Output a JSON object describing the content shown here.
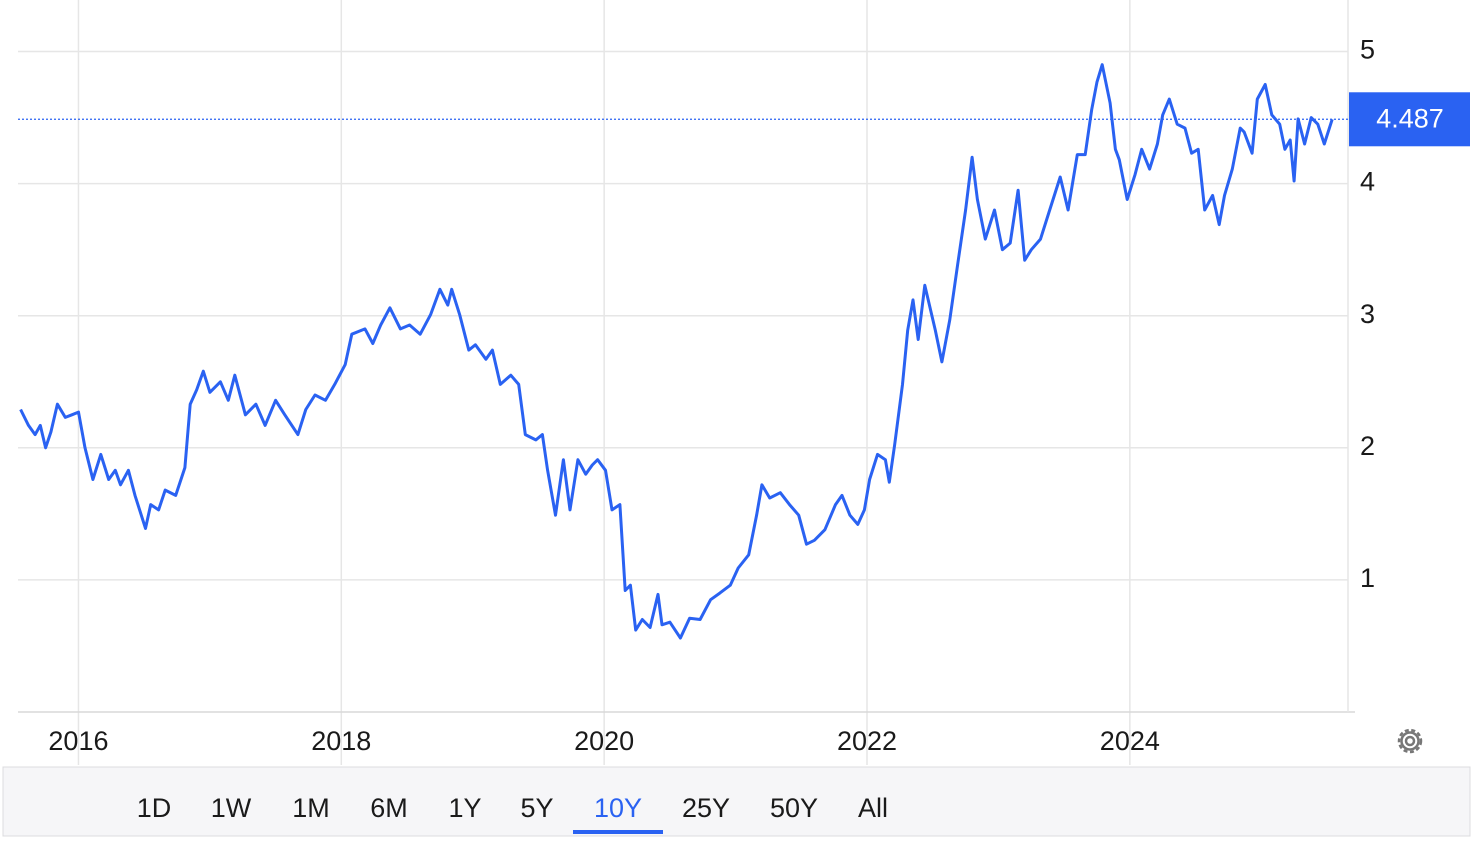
{
  "chart_data": {
    "type": "line",
    "color": "#2a62f2",
    "x": [
      2015.56,
      2015.62,
      2015.67,
      2015.71,
      2015.75,
      2015.79,
      2015.84,
      2015.9,
      2015.95,
      2016.0,
      2016.05,
      2016.11,
      2016.17,
      2016.23,
      2016.28,
      2016.32,
      2016.38,
      2016.43,
      2016.51,
      2016.55,
      2016.61,
      2016.66,
      2016.74,
      2016.81,
      2016.85,
      2016.9,
      2016.95,
      2017.0,
      2017.08,
      2017.14,
      2017.19,
      2017.27,
      2017.35,
      2017.42,
      2017.5,
      2017.57,
      2017.67,
      2017.73,
      2017.8,
      2017.88,
      2017.95,
      2018.03,
      2018.08,
      2018.18,
      2018.24,
      2018.3,
      2018.37,
      2018.45,
      2018.52,
      2018.6,
      2018.68,
      2018.75,
      2018.81,
      2018.84,
      2018.9,
      2018.97,
      2019.02,
      2019.1,
      2019.15,
      2019.21,
      2019.29,
      2019.35,
      2019.4,
      2019.48,
      2019.53,
      2019.57,
      2019.63,
      2019.69,
      2019.74,
      2019.8,
      2019.86,
      2019.91,
      2019.95,
      2020.01,
      2020.06,
      2020.12,
      2020.16,
      2020.2,
      2020.24,
      2020.29,
      2020.35,
      2020.41,
      2020.44,
      2020.5,
      2020.58,
      2020.65,
      2020.73,
      2020.81,
      2020.88,
      2020.96,
      2021.02,
      2021.1,
      2021.16,
      2021.2,
      2021.26,
      2021.34,
      2021.41,
      2021.48,
      2021.54,
      2021.6,
      2021.68,
      2021.76,
      2021.81,
      2021.87,
      2021.93,
      2021.98,
      2022.02,
      2022.08,
      2022.14,
      2022.17,
      2022.21,
      2022.27,
      2022.31,
      2022.35,
      2022.39,
      2022.44,
      2022.52,
      2022.57,
      2022.63,
      2022.69,
      2022.75,
      2022.8,
      2022.84,
      2022.9,
      2022.97,
      2023.03,
      2023.09,
      2023.15,
      2023.2,
      2023.25,
      2023.32,
      2023.39,
      2023.47,
      2023.53,
      2023.6,
      2023.66,
      2023.71,
      2023.75,
      2023.79,
      2023.85,
      2023.89,
      2023.92,
      2023.98,
      2024.04,
      2024.09,
      2024.15,
      2024.21,
      2024.25,
      2024.3,
      2024.36,
      2024.42,
      2024.47,
      2024.52,
      2024.57,
      2024.63,
      2024.68,
      2024.72,
      2024.78,
      2024.84,
      2024.87,
      2024.93,
      2024.97,
      2025.03,
      2025.08,
      2025.14,
      2025.18,
      2025.22,
      2025.25,
      2025.28,
      2025.33,
      2025.38,
      2025.43,
      2025.48,
      2025.54
    ],
    "values": [
      2.29,
      2.17,
      2.1,
      2.17,
      2.0,
      2.12,
      2.33,
      2.23,
      2.25,
      2.27,
      2.0,
      1.76,
      1.95,
      1.76,
      1.83,
      1.72,
      1.83,
      1.64,
      1.39,
      1.57,
      1.53,
      1.68,
      1.64,
      1.85,
      2.33,
      2.44,
      2.58,
      2.42,
      2.5,
      2.36,
      2.55,
      2.25,
      2.33,
      2.17,
      2.36,
      2.25,
      2.1,
      2.29,
      2.4,
      2.36,
      2.48,
      2.63,
      2.86,
      2.9,
      2.79,
      2.93,
      3.06,
      2.9,
      2.93,
      2.86,
      3.01,
      3.2,
      3.08,
      3.2,
      3.01,
      2.74,
      2.78,
      2.67,
      2.74,
      2.48,
      2.55,
      2.48,
      2.1,
      2.06,
      2.1,
      1.83,
      1.49,
      1.91,
      1.53,
      1.91,
      1.8,
      1.87,
      1.91,
      1.83,
      1.53,
      1.57,
      0.92,
      0.96,
      0.62,
      0.7,
      0.64,
      0.89,
      0.66,
      0.68,
      0.56,
      0.71,
      0.7,
      0.85,
      0.9,
      0.96,
      1.09,
      1.19,
      1.49,
      1.72,
      1.62,
      1.66,
      1.57,
      1.49,
      1.27,
      1.3,
      1.38,
      1.57,
      1.64,
      1.49,
      1.42,
      1.53,
      1.76,
      1.95,
      1.91,
      1.74,
      2.02,
      2.48,
      2.89,
      3.12,
      2.82,
      3.23,
      2.89,
      2.65,
      2.97,
      3.39,
      3.8,
      4.2,
      3.88,
      3.58,
      3.8,
      3.5,
      3.55,
      3.95,
      3.42,
      3.5,
      3.58,
      3.8,
      4.05,
      3.8,
      4.22,
      4.22,
      4.56,
      4.77,
      4.9,
      4.61,
      4.26,
      4.18,
      3.88,
      4.07,
      4.26,
      4.11,
      4.3,
      4.52,
      4.64,
      4.45,
      4.42,
      4.23,
      4.26,
      3.8,
      3.91,
      3.69,
      3.91,
      4.11,
      4.42,
      4.39,
      4.23,
      4.64,
      4.75,
      4.52,
      4.45,
      4.26,
      4.33,
      4.02,
      4.49,
      4.3,
      4.5,
      4.45,
      4.3,
      4.487
    ],
    "last_value": 4.487,
    "xlim": [
      2015.54,
      2025.66
    ],
    "xticks": [
      2016,
      2018,
      2020,
      2022,
      2024
    ],
    "ylim": [
      0,
      5.39
    ],
    "yticks": [
      1,
      2,
      3,
      4,
      5
    ],
    "grid": true
  },
  "range_selector": {
    "options": [
      "1D",
      "1W",
      "1M",
      "6M",
      "1Y",
      "5Y",
      "10Y",
      "25Y",
      "50Y",
      "All"
    ],
    "selected": 6
  }
}
